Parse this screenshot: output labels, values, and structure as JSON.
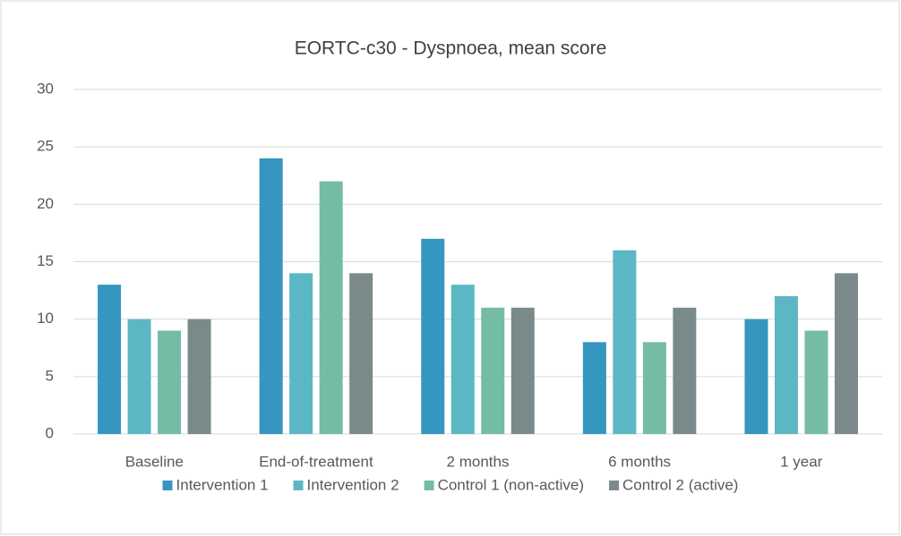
{
  "chart_data": {
    "type": "bar",
    "title": "EORTC-c30 - Dyspnoea, mean score",
    "categories": [
      "Baseline",
      "End-of-treatment",
      "2 months",
      "6 months",
      "1 year"
    ],
    "series": [
      {
        "name": "Intervention 1",
        "color": "#3596bf",
        "values": [
          13,
          24,
          17,
          8,
          10
        ]
      },
      {
        "name": "Intervention 2",
        "color": "#5cb7c5",
        "values": [
          10,
          14,
          13,
          16,
          12
        ]
      },
      {
        "name": "Control 1 (non-active)",
        "color": "#74bca5",
        "values": [
          9,
          22,
          11,
          8,
          9
        ]
      },
      {
        "name": "Control 2 (active)",
        "color": "#7a8a8a",
        "values": [
          10,
          14,
          11,
          11,
          14
        ]
      }
    ],
    "ylim": [
      0,
      30
    ],
    "yticks": [
      0,
      5,
      10,
      15,
      20,
      25,
      30
    ],
    "grid": true,
    "legend": "bottom"
  }
}
